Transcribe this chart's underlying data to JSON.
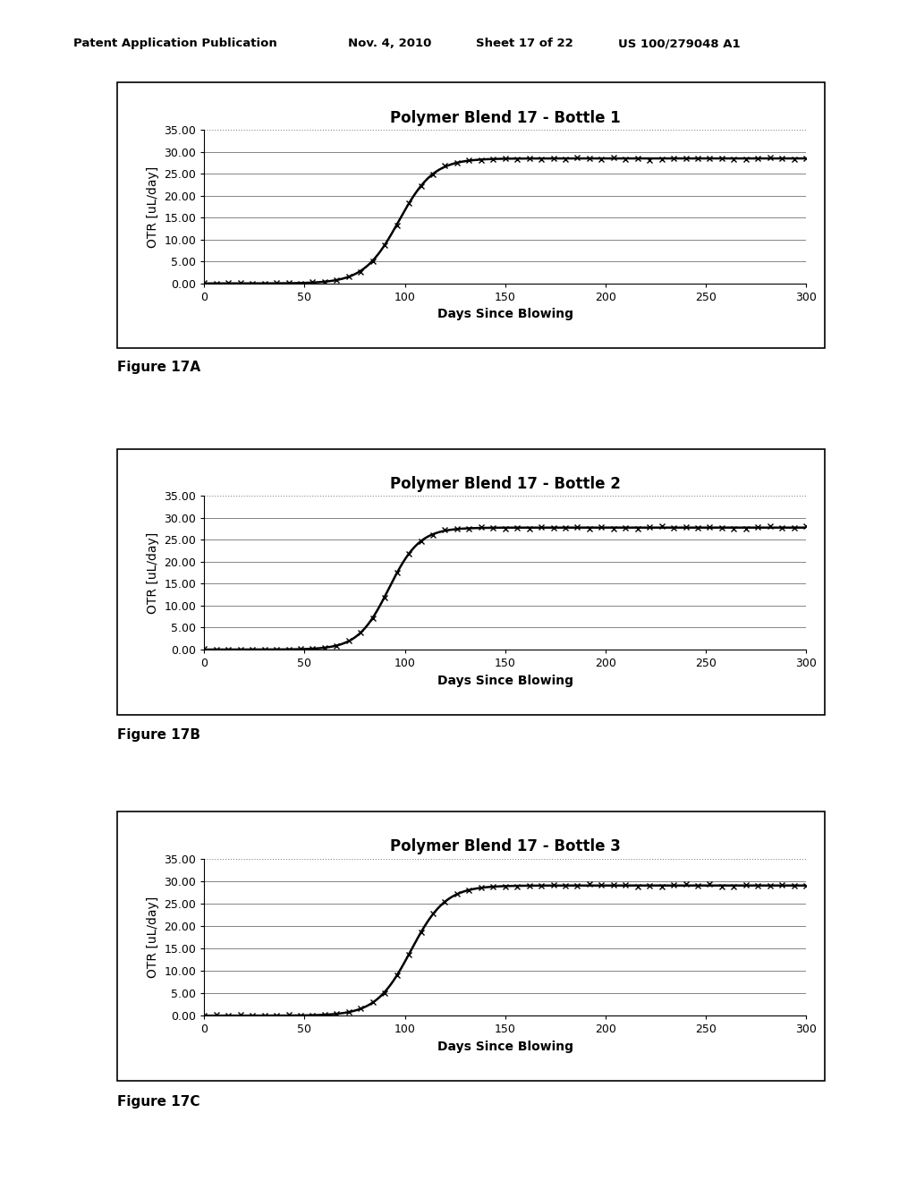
{
  "charts": [
    {
      "title": "Polymer Blend 17 - Bottle 1",
      "figure_label": "Figure 17A",
      "inflection": 97,
      "steepness": 0.115,
      "plateau": 28.5,
      "noise_seed": 42
    },
    {
      "title": "Polymer Blend 17 - Bottle 2",
      "figure_label": "Figure 17B",
      "inflection": 92,
      "steepness": 0.13,
      "plateau": 27.8,
      "noise_seed": 7
    },
    {
      "title": "Polymer Blend 17 - Bottle 3",
      "figure_label": "Figure 17C",
      "inflection": 103,
      "steepness": 0.115,
      "plateau": 29.0,
      "noise_seed": 99
    }
  ],
  "xlabel": "Days Since Blowing",
  "ylabel": "OTR [uL/day]",
  "xlim": [
    0,
    300
  ],
  "ylim": [
    0,
    35
  ],
  "yticks": [
    0.0,
    5.0,
    10.0,
    15.0,
    20.0,
    25.0,
    30.0,
    35.0
  ],
  "xticks": [
    0,
    50,
    100,
    150,
    200,
    250,
    300
  ],
  "line_color": "#000000",
  "marker": "x",
  "marker_color": "#000000",
  "marker_size": 4,
  "linewidth": 1.8,
  "grid_color": "#555555",
  "bg_color": "#ffffff",
  "page_bg": "#ffffff",
  "title_fontsize": 12,
  "label_fontsize": 10,
  "tick_fontsize": 9,
  "figure_label_fontsize": 11,
  "header_left": "Patent Application Publication",
  "header_mid1": "Nov. 4, 2010",
  "header_mid2": "Sheet 17 of 22",
  "header_right": "US 100/279048 A1"
}
